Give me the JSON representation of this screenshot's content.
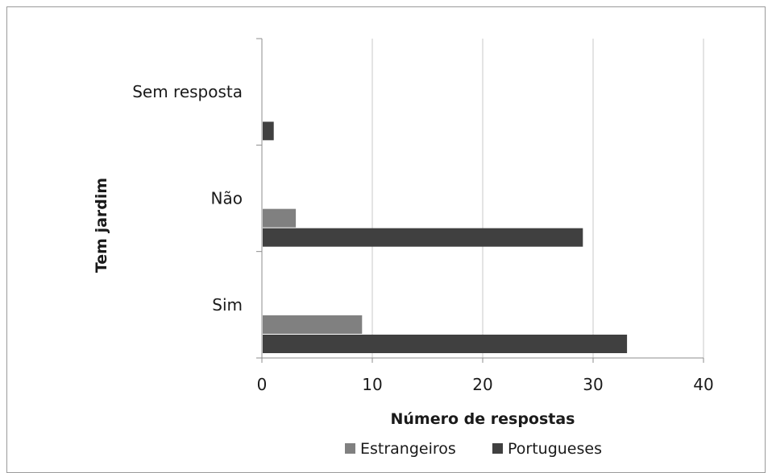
{
  "chart_data": {
    "type": "bar",
    "orientation": "horizontal",
    "categories": [
      "Sim",
      "Não",
      "Sem resposta"
    ],
    "series": [
      {
        "name": "Estrangeiros",
        "values": [
          9,
          3,
          0
        ],
        "color": "#808080"
      },
      {
        "name": "Portugueses",
        "values": [
          33,
          29,
          1
        ],
        "color": "#404040"
      }
    ],
    "xlabel": "Número de respostas",
    "ylabel": "Tem jardim",
    "xlim": [
      0,
      40
    ],
    "xticks": [
      "0",
      "10",
      "20",
      "30",
      "40"
    ],
    "grid": "vertical",
    "legend_position": "bottom"
  }
}
